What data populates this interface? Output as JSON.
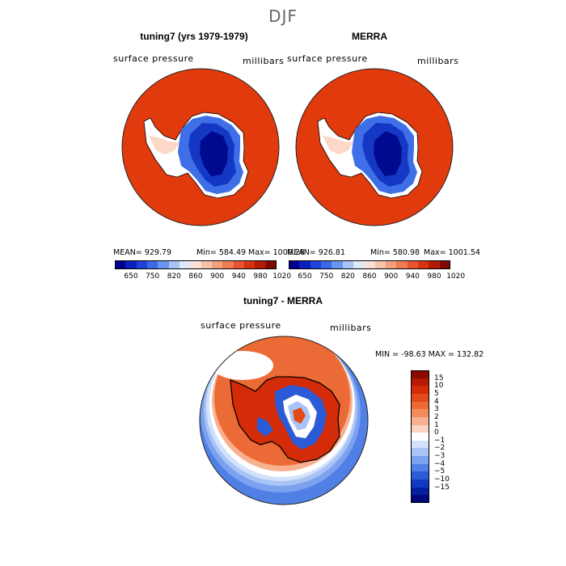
{
  "figure": {
    "season": "DJF"
  },
  "panels": [
    {
      "title": "tuning7 (yrs 1979-1979)",
      "field_label": "surface pressure",
      "units": "millibars",
      "stats": {
        "mean": "MEAN= 929.79",
        "min": "Min= 584.49",
        "max": "Max= 1000.28"
      }
    },
    {
      "title": "MERRA",
      "field_label": "surface pressure",
      "units": "millibars",
      "stats": {
        "mean": "MEAN= 926.81",
        "min": "Min= 580.98",
        "max": "Max= 1001.54"
      }
    },
    {
      "title": "tuning7 - MERRA",
      "field_label": "surface pressure",
      "units": "millibars",
      "minmax": "MIN = -98.63 MAX = 132.82"
    }
  ],
  "colorbar_top": {
    "labels": [
      "650",
      "750",
      "820",
      "860",
      "900",
      "940",
      "980",
      "1020"
    ],
    "colors": [
      "#00008f",
      "#0b1fbf",
      "#1f43d8",
      "#3b69e8",
      "#6c93f0",
      "#a7c4f7",
      "#dce9fb",
      "#fbe1d5",
      "#f7c2aa",
      "#f3a07d",
      "#ee7b55",
      "#e65430",
      "#d83310",
      "#b21a05",
      "#7c0a02"
    ]
  },
  "colorbar_diff": {
    "labels": [
      "15",
      "10",
      "5",
      "4",
      "3",
      "2",
      "1",
      "0",
      "−1",
      "−2",
      "−3",
      "−4",
      "−5",
      "−10",
      "−15"
    ],
    "colors": [
      "#8b0a00",
      "#b51a02",
      "#d42c08",
      "#e24a18",
      "#ec6a35",
      "#f38c5c",
      "#f7b090",
      "#fbd5c2",
      "#ffffff",
      "#d3e2fb",
      "#a8c4f6",
      "#7ba1ef",
      "#5080e6",
      "#2b5bd6",
      "#123ac0",
      "#061fa0",
      "#00087a"
    ]
  }
}
